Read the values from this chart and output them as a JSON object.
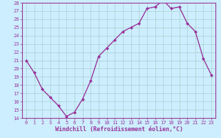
{
  "x": [
    0,
    1,
    2,
    3,
    4,
    5,
    6,
    7,
    8,
    9,
    10,
    11,
    12,
    13,
    14,
    15,
    16,
    17,
    18,
    19,
    20,
    21,
    22,
    23
  ],
  "y": [
    21,
    19.5,
    17.5,
    16.5,
    15.5,
    14.2,
    14.7,
    16.3,
    18.5,
    21.5,
    22.5,
    23.5,
    24.5,
    25.0,
    25.5,
    27.3,
    27.5,
    28.3,
    27.3,
    27.5,
    25.5,
    24.5,
    21.2,
    19.2
  ],
  "line_color": "#993399",
  "marker": "D",
  "marker_size": 2.0,
  "bg_color": "#cceeff",
  "grid_color": "#aacccc",
  "xlabel": "Windchill (Refroidissement éolien,°C)",
  "ylabel": "",
  "ylim": [
    14,
    28
  ],
  "xlim": [
    -0.5,
    23.5
  ],
  "yticks": [
    14,
    15,
    16,
    17,
    18,
    19,
    20,
    21,
    22,
    23,
    24,
    25,
    26,
    27,
    28
  ],
  "xticks": [
    0,
    1,
    2,
    3,
    4,
    5,
    6,
    7,
    8,
    9,
    10,
    11,
    12,
    13,
    14,
    15,
    16,
    17,
    18,
    19,
    20,
    21,
    22,
    23
  ],
  "tick_label_fontsize": 5.0,
  "xlabel_fontsize": 6.0,
  "line_width": 1.0,
  "axis_color": "#993399",
  "border_color": "#993399",
  "spine_color": "#993399"
}
